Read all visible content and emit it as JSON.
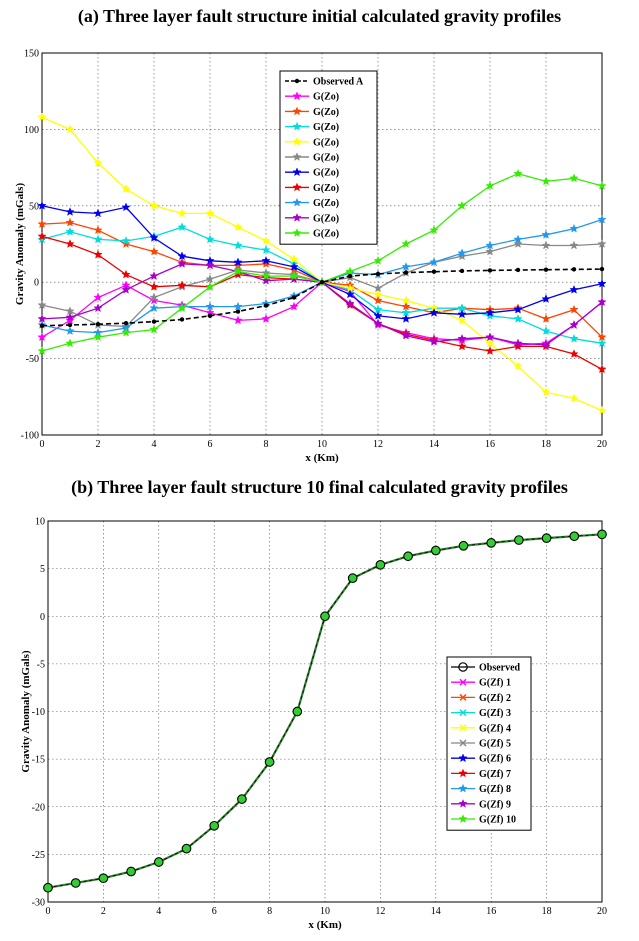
{
  "chart_data": [
    {
      "type": "line",
      "title": "(a) Three layer fault structure initial calculated gravity profiles",
      "xlabel": "x (Km)",
      "ylabel": "Gravity Anomaly (mGals)",
      "xlim": [
        0,
        20
      ],
      "ylim": [
        -100,
        150
      ],
      "xticks": [
        0,
        2,
        4,
        6,
        8,
        10,
        12,
        14,
        16,
        18,
        20
      ],
      "yticks": [
        -100,
        -50,
        0,
        50,
        100,
        150
      ],
      "grid": true,
      "legend_position": "top-center",
      "x": [
        0,
        1,
        2,
        3,
        4,
        5,
        6,
        7,
        8,
        9,
        10,
        11,
        12,
        13,
        14,
        15,
        16,
        17,
        18,
        19,
        20
      ],
      "series": [
        {
          "name": "Observed A",
          "color": "#000000",
          "marker": "circle",
          "dashed": true,
          "values": [
            -28.5,
            -28,
            -27.5,
            -26.8,
            -25.8,
            -24.4,
            -22,
            -19.2,
            -15.3,
            -10,
            0,
            4,
            5.4,
            6.3,
            6.9,
            7.4,
            7.7,
            8,
            8.2,
            8.4,
            8.6
          ]
        },
        {
          "name": "G(Zo)",
          "color": "#ff00ff",
          "marker": "star",
          "values": [
            -36,
            -25,
            -10,
            -2,
            -12,
            -15,
            -20,
            -25,
            -24,
            -16,
            0,
            -6,
            -28,
            -33,
            -37,
            -38,
            -36,
            -41,
            -40,
            -28,
            -13
          ]
        },
        {
          "name": "G(Zo)",
          "color": "#ff4400",
          "marker": "star",
          "values": [
            38,
            39,
            34,
            25,
            20,
            13,
            11,
            11,
            12,
            8,
            0,
            -2,
            -12,
            -16,
            -20,
            -17,
            -18,
            -17,
            -24,
            -18,
            -36
          ]
        },
        {
          "name": "G(Zo)",
          "color": "#00dddd",
          "marker": "star",
          "values": [
            28,
            33,
            28,
            27,
            30,
            36,
            28,
            24,
            21,
            12,
            0,
            -5,
            -18,
            -20,
            -17,
            -17,
            -22,
            -24,
            -32,
            -37,
            -40
          ]
        },
        {
          "name": "G(Zo)",
          "color": "#ffff00",
          "marker": "star",
          "values": [
            108,
            100,
            78,
            61,
            50,
            45,
            45,
            36,
            27,
            15,
            0,
            -4,
            -8,
            -12,
            -17,
            -25,
            -40,
            -55,
            -72,
            -76,
            -84
          ]
        },
        {
          "name": "G(Zo)",
          "color": "#888888",
          "marker": "star",
          "values": [
            -15,
            -19,
            -28,
            -29,
            -10,
            -3,
            2,
            8,
            6,
            5,
            0,
            3,
            -4,
            6,
            13,
            17,
            20,
            25,
            24,
            24,
            25
          ]
        },
        {
          "name": "G(Zo)",
          "color": "#0000ee",
          "marker": "star",
          "values": [
            50,
            46,
            45,
            49,
            29,
            17,
            14,
            13,
            14,
            10,
            0,
            -8,
            -22,
            -24,
            -20,
            -21,
            -20,
            -18,
            -11,
            -5,
            -1
          ]
        },
        {
          "name": "G(Zo)",
          "color": "#ee0000",
          "marker": "star",
          "values": [
            30,
            25,
            18,
            5,
            -3,
            -2,
            -3,
            5,
            3,
            2,
            0,
            -15,
            -27,
            -34,
            -38,
            -42,
            -45,
            -42,
            -42,
            -47,
            -57
          ]
        },
        {
          "name": "G(Zo)",
          "color": "#2299ee",
          "marker": "star",
          "values": [
            -28,
            -32,
            -33,
            -30,
            -17,
            -16,
            -16,
            -16,
            -14,
            -9,
            0,
            6,
            5,
            10,
            13,
            19,
            24,
            28,
            31,
            35,
            41
          ]
        },
        {
          "name": "G(Zo)",
          "color": "#aa00cc",
          "marker": "star",
          "values": [
            -24,
            -23,
            -17,
            -5,
            4,
            12,
            11,
            7,
            1,
            2,
            0,
            -14,
            -27,
            -35,
            -39,
            -37,
            -36,
            -40,
            -41,
            -28,
            -13
          ]
        },
        {
          "name": "G(Zo)",
          "color": "#33ee00",
          "marker": "star",
          "values": [
            -45,
            -40,
            -36,
            -33,
            -31,
            -17,
            -3,
            7,
            4,
            4,
            0,
            7,
            14,
            25,
            34,
            50,
            63,
            71,
            66,
            68,
            63
          ]
        }
      ]
    },
    {
      "type": "line",
      "title": "(b) Three layer fault structure 10 final calculated gravity profiles",
      "xlabel": "x (Km)",
      "ylabel": "Gravity Anomaly (mGals)",
      "xlim": [
        0,
        20
      ],
      "ylim": [
        -30,
        10
      ],
      "xticks": [
        0,
        2,
        4,
        6,
        8,
        10,
        12,
        14,
        16,
        18,
        20
      ],
      "yticks": [
        -30,
        -25,
        -20,
        -15,
        -10,
        -5,
        0,
        5,
        10
      ],
      "grid": true,
      "legend_position": "center-right",
      "x": [
        0,
        1,
        2,
        3,
        4,
        5,
        6,
        7,
        8,
        9,
        10,
        11,
        12,
        13,
        14,
        15,
        16,
        17,
        18,
        19,
        20
      ],
      "observed": [
        -28.5,
        -28,
        -27.5,
        -26.8,
        -25.8,
        -24.4,
        -22,
        -19.2,
        -15.3,
        -10,
        0,
        4,
        5.4,
        6.3,
        6.9,
        7.4,
        7.7,
        8,
        8.2,
        8.4,
        8.6
      ],
      "legend": [
        {
          "name": "Observed",
          "color": "#000000",
          "marker": "open-circle"
        },
        {
          "name": "G(Zf) 1",
          "color": "#ff00ff",
          "marker": "x"
        },
        {
          "name": "G(Zf) 2",
          "color": "#ff4400",
          "marker": "x"
        },
        {
          "name": "G(Zf) 3",
          "color": "#00dddd",
          "marker": "x"
        },
        {
          "name": "G(Zf) 4",
          "color": "#ffff00",
          "marker": "x"
        },
        {
          "name": "G(Zf) 5",
          "color": "#888888",
          "marker": "x"
        },
        {
          "name": "G(Zf) 6",
          "color": "#0000ee",
          "marker": "star"
        },
        {
          "name": "G(Zf) 7",
          "color": "#ee0000",
          "marker": "star"
        },
        {
          "name": "G(Zf) 8",
          "color": "#2299ee",
          "marker": "star"
        },
        {
          "name": "G(Zf) 9",
          "color": "#aa00cc",
          "marker": "star"
        },
        {
          "name": "G(Zf) 10",
          "color": "#33ee00",
          "marker": "star"
        }
      ],
      "final_line_color": "#2d7d2d",
      "marker_fill": "#33cc33"
    }
  ]
}
